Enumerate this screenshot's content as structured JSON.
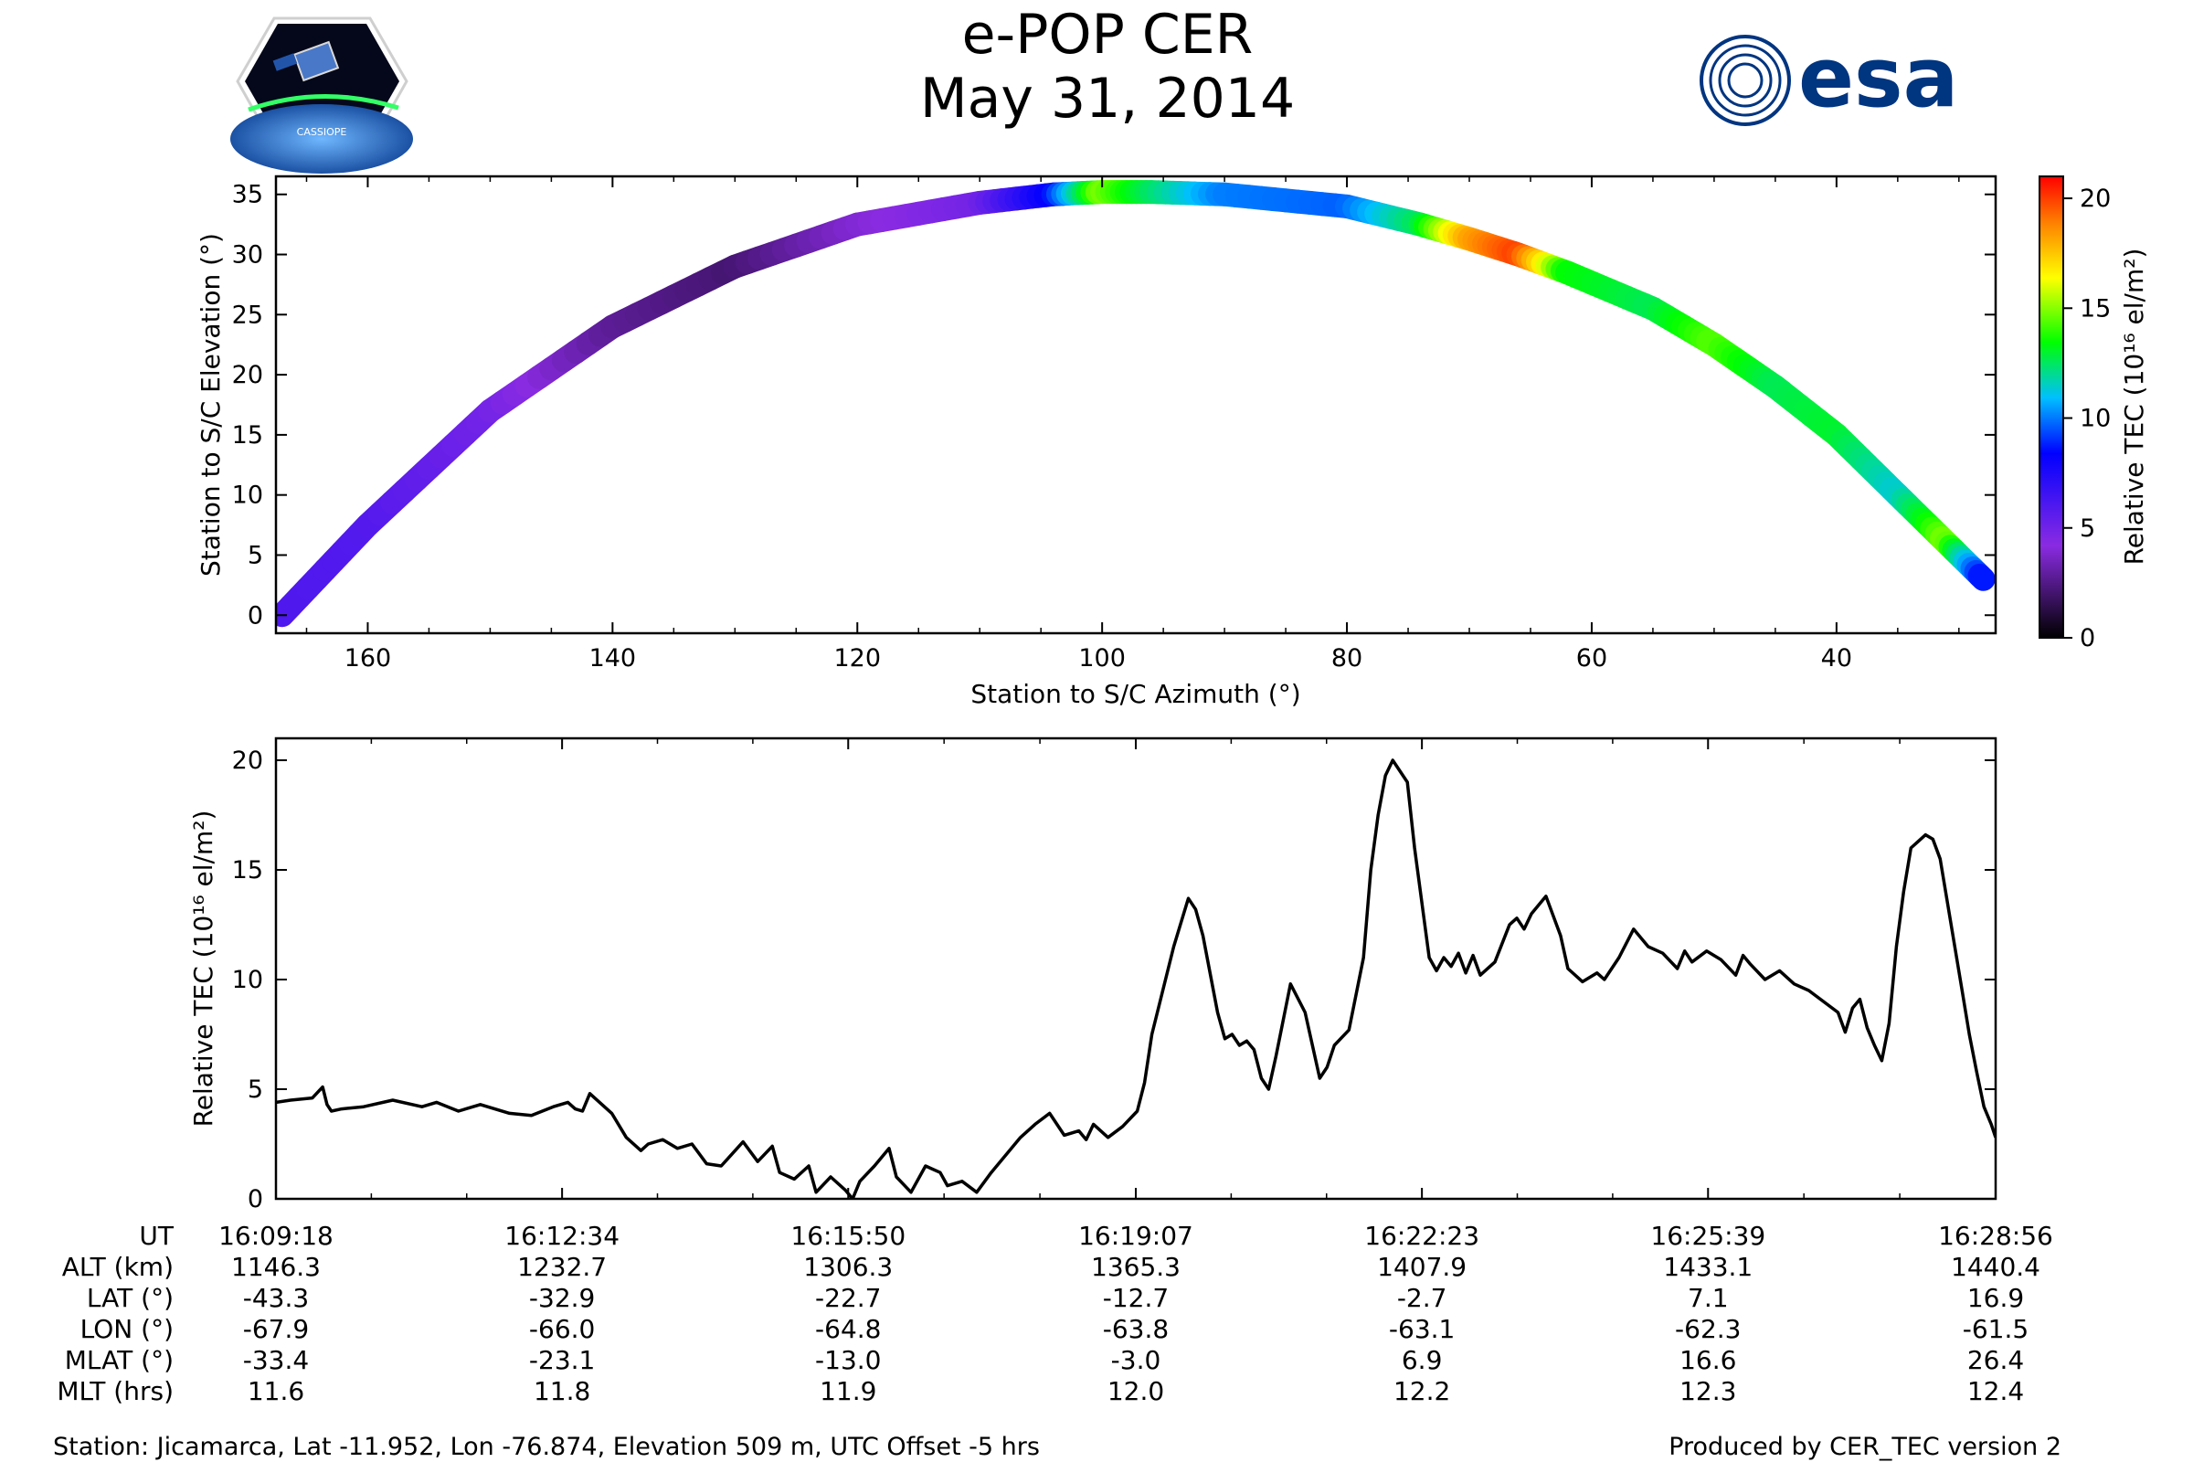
{
  "header": {
    "title_line1": "e-POP CER",
    "title_line2": "May 31, 2014",
    "cassiope_logo_text": "CASSIOPE",
    "esa_logo_text": "esa"
  },
  "colors": {
    "line": "#000000",
    "colormap": [
      "#000000",
      "#8a2be2",
      "#0000ff",
      "#00bfff",
      "#00ff00",
      "#ffff00",
      "#ff8000",
      "#ff0000"
    ],
    "esa_blue": "#003580"
  },
  "chart_data": [
    {
      "type": "scatter",
      "name": "arc-plot",
      "xlabel": "Station to S/C Azimuth (°)",
      "ylabel": "Station to S/C Elevation (°)",
      "xlim": [
        167.5,
        27
      ],
      "ylim": [
        -1.5,
        36.5
      ],
      "xticks": [
        160,
        140,
        120,
        100,
        80,
        60,
        40
      ],
      "yticks": [
        0,
        5,
        10,
        15,
        20,
        25,
        30,
        35
      ],
      "colorbar": {
        "label": "Relative TEC (10¹⁶ el/m²)",
        "range": [
          0,
          21
        ],
        "ticks": [
          0,
          5,
          10,
          15,
          20
        ]
      },
      "track": [
        {
          "az": 167,
          "el": 0,
          "tec": 4.3
        },
        {
          "az": 160,
          "el": 7.5,
          "tec": 4.2
        },
        {
          "az": 150,
          "el": 17,
          "tec": 3.5
        },
        {
          "az": 140,
          "el": 24,
          "tec": 2.0
        },
        {
          "az": 130,
          "el": 29,
          "tec": 1.5
        },
        {
          "az": 120,
          "el": 32.5,
          "tec": 2.8
        },
        {
          "az": 110,
          "el": 34.3,
          "tec": 3.5
        },
        {
          "az": 104,
          "el": 35,
          "tec": 6.0
        },
        {
          "az": 100,
          "el": 35.2,
          "tec": 13.5
        },
        {
          "az": 96,
          "el": 35.2,
          "tec": 11.0
        },
        {
          "az": 90,
          "el": 35,
          "tec": 8.0
        },
        {
          "az": 80,
          "el": 34,
          "tec": 7.5
        },
        {
          "az": 74,
          "el": 32.5,
          "tec": 11.0
        },
        {
          "az": 70,
          "el": 31.3,
          "tec": 17.0
        },
        {
          "az": 66,
          "el": 30,
          "tec": 19.5
        },
        {
          "az": 62,
          "el": 28.5,
          "tec": 12.0
        },
        {
          "az": 55,
          "el": 25.5,
          "tec": 11.0
        },
        {
          "az": 50,
          "el": 22.5,
          "tec": 13.0
        },
        {
          "az": 45,
          "el": 19,
          "tec": 11.0
        },
        {
          "az": 40,
          "el": 15,
          "tec": 11.5
        },
        {
          "az": 35,
          "el": 10,
          "tec": 9.5
        },
        {
          "az": 31,
          "el": 6,
          "tec": 13.5
        },
        {
          "az": 28,
          "el": 3,
          "tec": 6.0
        }
      ]
    },
    {
      "type": "line",
      "name": "tec-timeseries",
      "xlabel": "",
      "ylabel": "Relative TEC (10¹⁶ el/m²)",
      "xlim": [
        0,
        1178
      ],
      "ylim": [
        0,
        21
      ],
      "yticks": [
        0,
        5,
        10,
        15,
        20
      ],
      "xticks_s": [
        0,
        196,
        392,
        589,
        785,
        981,
        1178
      ],
      "series": [
        {
          "name": "Relative TEC",
          "t": [
            0,
            10,
            25,
            32,
            35,
            38,
            45,
            60,
            80,
            100,
            110,
            125,
            140,
            160,
            175,
            190,
            200,
            205,
            210,
            215,
            230,
            240,
            250,
            255,
            265,
            275,
            285,
            295,
            305,
            320,
            330,
            340,
            345,
            355,
            365,
            370,
            380,
            390,
            395,
            400,
            410,
            420,
            425,
            435,
            445,
            455,
            460,
            470,
            480,
            490,
            500,
            510,
            520,
            530,
            540,
            550,
            555,
            560,
            570,
            580,
            590,
            595,
            600,
            615,
            625,
            630,
            635,
            645,
            650,
            655,
            660,
            665,
            670,
            675,
            680,
            685,
            695,
            705,
            710,
            715,
            720,
            725,
            735,
            745,
            750,
            755,
            760,
            765,
            775,
            780,
            790,
            795,
            800,
            805,
            810,
            815,
            820,
            825,
            835,
            845,
            850,
            855,
            860,
            870,
            880,
            885,
            895,
            905,
            910,
            915,
            920,
            930,
            940,
            950,
            960,
            965,
            970,
            980,
            990,
            1000,
            1005,
            1010,
            1020,
            1030,
            1040,
            1050,
            1060,
            1070,
            1075,
            1080,
            1085,
            1090,
            1095,
            1100,
            1105,
            1110,
            1115,
            1120,
            1125,
            1130,
            1135,
            1140,
            1145,
            1150,
            1155,
            1160,
            1165,
            1170,
            1175,
            1178
          ],
          "values": [
            4.4,
            4.5,
            4.6,
            5.1,
            4.3,
            4.0,
            4.1,
            4.2,
            4.5,
            4.2,
            4.4,
            4.0,
            4.3,
            3.9,
            3.8,
            4.2,
            4.4,
            4.1,
            4.0,
            4.8,
            3.9,
            2.8,
            2.2,
            2.5,
            2.7,
            2.3,
            2.5,
            1.6,
            1.5,
            2.6,
            1.7,
            2.4,
            1.2,
            0.9,
            1.5,
            0.3,
            1.0,
            0.4,
            0.0,
            0.8,
            1.5,
            2.3,
            1.0,
            0.3,
            1.5,
            1.2,
            0.6,
            0.8,
            0.3,
            1.2,
            2.0,
            2.8,
            3.4,
            3.9,
            2.9,
            3.1,
            2.7,
            3.4,
            2.8,
            3.3,
            4.0,
            5.3,
            7.5,
            11.5,
            13.7,
            13.2,
            12.0,
            8.5,
            7.3,
            7.5,
            7.0,
            7.2,
            6.8,
            5.5,
            5.0,
            6.5,
            9.8,
            8.5,
            7.0,
            5.5,
            6.0,
            7.0,
            7.7,
            11.0,
            15.0,
            17.5,
            19.3,
            20.0,
            19.0,
            16.0,
            11.0,
            10.4,
            11.0,
            10.6,
            11.2,
            10.3,
            11.1,
            10.2,
            10.8,
            12.5,
            12.8,
            12.3,
            13.0,
            13.8,
            12.0,
            10.5,
            9.9,
            10.3,
            10.0,
            10.5,
            11.0,
            12.3,
            11.5,
            11.2,
            10.5,
            11.3,
            10.8,
            11.3,
            10.9,
            10.2,
            11.1,
            10.7,
            10.0,
            10.4,
            9.8,
            9.5,
            9.0,
            8.5,
            7.6,
            8.7,
            9.1,
            7.8,
            7.0,
            6.3,
            8.0,
            11.5,
            14.0,
            16.0,
            16.3,
            16.6,
            16.4,
            15.5,
            13.5,
            11.5,
            9.5,
            7.5,
            5.8,
            4.2,
            3.4,
            2.8
          ]
        }
      ]
    }
  ],
  "table": {
    "row_labels": [
      "UT",
      "ALT (km)",
      "LAT (°)",
      "LON (°)",
      "MLAT (°)",
      "MLT (hrs)"
    ],
    "columns": [
      [
        "16:09:18",
        "1146.3",
        "-43.3",
        "-67.9",
        "-33.4",
        "11.6"
      ],
      [
        "16:12:34",
        "1232.7",
        "-32.9",
        "-66.0",
        "-23.1",
        "11.8"
      ],
      [
        "16:15:50",
        "1306.3",
        "-22.7",
        "-64.8",
        "-13.0",
        "11.9"
      ],
      [
        "16:19:07",
        "1365.3",
        "-12.7",
        "-63.8",
        "-3.0",
        "12.0"
      ],
      [
        "16:22:23",
        "1407.9",
        "-2.7",
        "-63.1",
        "6.9",
        "12.2"
      ],
      [
        "16:25:39",
        "1433.1",
        "7.1",
        "-62.3",
        "16.6",
        "12.3"
      ],
      [
        "16:28:56",
        "1440.4",
        "16.9",
        "-61.5",
        "26.4",
        "12.4"
      ]
    ]
  },
  "footer": {
    "station": "Station: Jicamarca, Lat -11.952, Lon -76.874, Elevation 509 m, UTC Offset -5 hrs",
    "produced_by": "Produced by CER_TEC version 2"
  }
}
